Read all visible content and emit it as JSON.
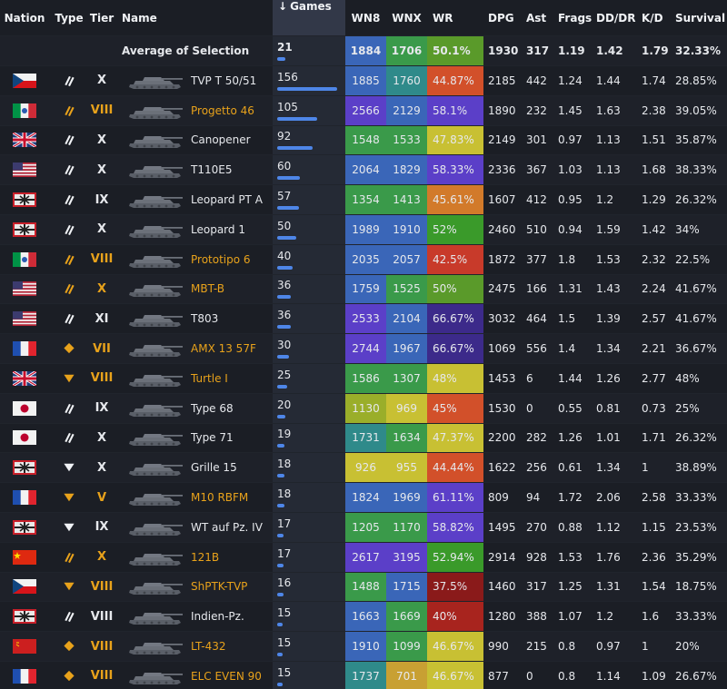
{
  "headers": {
    "nation": "Nation",
    "type": "Type",
    "tier": "Tier",
    "name": "Name",
    "games": "Games",
    "games_sort_icon": "↓",
    "wn8": "WN8",
    "wnx": "WNX",
    "wr": "WR",
    "dpg": "DPG",
    "ast": "Ast",
    "frags": "Frags",
    "dddr": "DD/DR",
    "kd": "K/D",
    "survival": "Survival"
  },
  "average": {
    "label": "Average of Selection",
    "games": "21",
    "games_fraction": 0.13,
    "wn8": "1884",
    "wn8_color": "#3a66b8",
    "wnx": "1706",
    "wnx_color": "#3a9a4a",
    "wr": "50.1%",
    "wr_color": "#5a9a2a",
    "dpg": "1930",
    "ast": "317",
    "frags": "1.19",
    "dddr": "1.42",
    "kd": "1.79",
    "survival": "32.33%"
  },
  "rows": [
    {
      "nation": "czech-flag",
      "type": "td-icon",
      "tier": "X",
      "gold": false,
      "name": "TVP T 50/51",
      "games": "156",
      "games_fraction": 1.0,
      "wn8": "1885",
      "wn8_color": "#3a66b8",
      "wnx": "1760",
      "wnx_color": "#2f8a8a",
      "wr": "44.87%",
      "wr_color": "#d2502a",
      "dpg": "2185",
      "ast": "442",
      "frags": "1.24",
      "dddr": "1.44",
      "kd": "1.74",
      "survival": "28.85%"
    },
    {
      "nation": "italy-flag",
      "type": "td-icon",
      "tier": "VIII",
      "gold": true,
      "name": "Progetto 46",
      "games": "105",
      "games_fraction": 0.67,
      "wn8": "2566",
      "wn8_color": "#5b3fc8",
      "wnx": "2129",
      "wnx_color": "#3a66b8",
      "wr": "58.1%",
      "wr_color": "#5b3fc8",
      "dpg": "1890",
      "ast": "232",
      "frags": "1.45",
      "dddr": "1.63",
      "kd": "2.38",
      "survival": "39.05%"
    },
    {
      "nation": "uk-flag",
      "type": "td-icon",
      "tier": "X",
      "gold": false,
      "name": "Canopener",
      "games": "92",
      "games_fraction": 0.59,
      "wn8": "1548",
      "wn8_color": "#3a9a4a",
      "wnx": "1533",
      "wnx_color": "#3a9a4a",
      "wr": "47.83%",
      "wr_color": "#c8c033",
      "dpg": "2149",
      "ast": "301",
      "frags": "0.97",
      "dddr": "1.13",
      "kd": "1.51",
      "survival": "35.87%"
    },
    {
      "nation": "usa-flag",
      "type": "td-icon",
      "tier": "X",
      "gold": false,
      "name": "T110E5",
      "games": "60",
      "games_fraction": 0.38,
      "wn8": "2064",
      "wn8_color": "#3a66b8",
      "wnx": "1829",
      "wnx_color": "#3a66b8",
      "wr": "58.33%",
      "wr_color": "#5b3fc8",
      "dpg": "2336",
      "ast": "367",
      "frags": "1.03",
      "dddr": "1.13",
      "kd": "1.68",
      "survival": "38.33%"
    },
    {
      "nation": "germany-flag",
      "type": "td-icon",
      "tier": "IX",
      "gold": false,
      "name": "Leopard PT A",
      "games": "57",
      "games_fraction": 0.36,
      "wn8": "1354",
      "wn8_color": "#3a9a4a",
      "wnx": "1413",
      "wnx_color": "#3a9a4a",
      "wr": "45.61%",
      "wr_color": "#d27a2a",
      "dpg": "1607",
      "ast": "412",
      "frags": "0.95",
      "dddr": "1.2",
      "kd": "1.29",
      "survival": "26.32%"
    },
    {
      "nation": "germany-flag",
      "type": "td-icon",
      "tier": "X",
      "gold": false,
      "name": "Leopard 1",
      "games": "50",
      "games_fraction": 0.32,
      "wn8": "1989",
      "wn8_color": "#3a66b8",
      "wnx": "1910",
      "wnx_color": "#3a66b8",
      "wr": "52%",
      "wr_color": "#3a9a2a",
      "dpg": "2460",
      "ast": "510",
      "frags": "0.94",
      "dddr": "1.59",
      "kd": "1.42",
      "survival": "34%"
    },
    {
      "nation": "italy-flag",
      "type": "td-icon",
      "tier": "VIII",
      "gold": true,
      "name": "Prototipo 6",
      "games": "40",
      "games_fraction": 0.26,
      "wn8": "2035",
      "wn8_color": "#3a66b8",
      "wnx": "2057",
      "wnx_color": "#3a66b8",
      "wr": "42.5%",
      "wr_color": "#c83a2a",
      "dpg": "1872",
      "ast": "377",
      "frags": "1.8",
      "dddr": "1.53",
      "kd": "2.32",
      "survival": "22.5%"
    },
    {
      "nation": "usa-flag",
      "type": "td-icon",
      "tier": "X",
      "gold": true,
      "name": "MBT-B",
      "games": "36",
      "games_fraction": 0.23,
      "wn8": "1759",
      "wn8_color": "#3a66b8",
      "wnx": "1525",
      "wnx_color": "#3a9a4a",
      "wr": "50%",
      "wr_color": "#5a9a2a",
      "dpg": "2475",
      "ast": "166",
      "frags": "1.31",
      "dddr": "1.43",
      "kd": "2.24",
      "survival": "41.67%"
    },
    {
      "nation": "usa-flag",
      "type": "td-icon",
      "tier": "XI",
      "gold": false,
      "name": "T803",
      "games": "36",
      "games_fraction": 0.23,
      "wn8": "2533",
      "wn8_color": "#5b3fc8",
      "wnx": "2104",
      "wnx_color": "#3a66b8",
      "wr": "66.67%",
      "wr_color": "#3c2a8a",
      "dpg": "3032",
      "ast": "464",
      "frags": "1.5",
      "dddr": "1.39",
      "kd": "2.57",
      "survival": "41.67%"
    },
    {
      "nation": "france-flag",
      "type": "light-icon",
      "tier": "VII",
      "gold": true,
      "name": "AMX 13 57F",
      "games": "30",
      "games_fraction": 0.19,
      "wn8": "2744",
      "wn8_color": "#5b3fc8",
      "wnx": "1967",
      "wnx_color": "#3a66b8",
      "wr": "66.67%",
      "wr_color": "#3c2a8a",
      "dpg": "1069",
      "ast": "556",
      "frags": "1.4",
      "dddr": "1.34",
      "kd": "2.21",
      "survival": "36.67%"
    },
    {
      "nation": "uk-flag",
      "type": "heavy-icon",
      "tier": "VIII",
      "gold": true,
      "name": "Turtle I",
      "games": "25",
      "games_fraction": 0.16,
      "wn8": "1586",
      "wn8_color": "#3a9a4a",
      "wnx": "1307",
      "wnx_color": "#3a9a4a",
      "wr": "48%",
      "wr_color": "#c8c033",
      "dpg": "1453",
      "ast": "6",
      "frags": "1.44",
      "dddr": "1.26",
      "kd": "2.77",
      "survival": "48%"
    },
    {
      "nation": "japan-flag",
      "type": "td-icon",
      "tier": "IX",
      "gold": false,
      "name": "Type 68",
      "games": "20",
      "games_fraction": 0.13,
      "wn8": "1130",
      "wn8_color": "#9aae2a",
      "wnx": "969",
      "wnx_color": "#c8c033",
      "wr": "45%",
      "wr_color": "#d2502a",
      "dpg": "1530",
      "ast": "0",
      "frags": "0.55",
      "dddr": "0.81",
      "kd": "0.73",
      "survival": "25%"
    },
    {
      "nation": "japan-flag",
      "type": "td-icon",
      "tier": "X",
      "gold": false,
      "name": "Type 71",
      "games": "19",
      "games_fraction": 0.12,
      "wn8": "1731",
      "wn8_color": "#2f8a8a",
      "wnx": "1634",
      "wnx_color": "#3a9a4a",
      "wr": "47.37%",
      "wr_color": "#c8c033",
      "dpg": "2200",
      "ast": "282",
      "frags": "1.26",
      "dddr": "1.01",
      "kd": "1.71",
      "survival": "26.32%"
    },
    {
      "nation": "germany-flag",
      "type": "heavy-icon",
      "tier": "X",
      "gold": false,
      "name": "Grille 15",
      "games": "18",
      "games_fraction": 0.115,
      "wn8": "926",
      "wn8_color": "#c8c033",
      "wnx": "955",
      "wnx_color": "#c8c033",
      "wr": "44.44%",
      "wr_color": "#d2502a",
      "dpg": "1622",
      "ast": "256",
      "frags": "0.61",
      "dddr": "1.34",
      "kd": "1",
      "survival": "38.89%"
    },
    {
      "nation": "france-flag",
      "type": "heavy-icon",
      "tier": "V",
      "gold": true,
      "name": "M10 RBFM",
      "games": "18",
      "games_fraction": 0.115,
      "wn8": "1824",
      "wn8_color": "#3a66b8",
      "wnx": "1969",
      "wnx_color": "#3a66b8",
      "wr": "61.11%",
      "wr_color": "#5b3fc8",
      "dpg": "809",
      "ast": "94",
      "frags": "1.72",
      "dddr": "2.06",
      "kd": "2.58",
      "survival": "33.33%"
    },
    {
      "nation": "germany-flag",
      "type": "heavy-icon",
      "tier": "IX",
      "gold": false,
      "name": "WT auf Pz. IV",
      "games": "17",
      "games_fraction": 0.11,
      "wn8": "1205",
      "wn8_color": "#3a9a4a",
      "wnx": "1170",
      "wnx_color": "#3a9a4a",
      "wr": "58.82%",
      "wr_color": "#5b3fc8",
      "dpg": "1495",
      "ast": "270",
      "frags": "0.88",
      "dddr": "1.12",
      "kd": "1.15",
      "survival": "23.53%"
    },
    {
      "nation": "china-flag",
      "type": "td-icon",
      "tier": "X",
      "gold": true,
      "name": "121B",
      "games": "17",
      "games_fraction": 0.11,
      "wn8": "2617",
      "wn8_color": "#5b3fc8",
      "wnx": "3195",
      "wnx_color": "#5b3fc8",
      "wr": "52.94%",
      "wr_color": "#3a9a2a",
      "dpg": "2914",
      "ast": "928",
      "frags": "1.53",
      "dddr": "1.76",
      "kd": "2.36",
      "survival": "35.29%"
    },
    {
      "nation": "czech-flag",
      "type": "heavy-icon",
      "tier": "VIII",
      "gold": true,
      "name": "ShPTK-TVP",
      "games": "16",
      "games_fraction": 0.1,
      "wn8": "1488",
      "wn8_color": "#3a9a4a",
      "wnx": "1715",
      "wnx_color": "#3a66b8",
      "wr": "37.5%",
      "wr_color": "#8a1a1a",
      "dpg": "1460",
      "ast": "317",
      "frags": "1.25",
      "dddr": "1.31",
      "kd": "1.54",
      "survival": "18.75%"
    },
    {
      "nation": "germany-flag",
      "type": "td-icon",
      "tier": "VIII",
      "gold": false,
      "name": "Indien-Pz.",
      "games": "15",
      "games_fraction": 0.096,
      "wn8": "1663",
      "wn8_color": "#3a66b8",
      "wnx": "1669",
      "wnx_color": "#3a9a4a",
      "wr": "40%",
      "wr_color": "#a8241e",
      "dpg": "1280",
      "ast": "388",
      "frags": "1.07",
      "dddr": "1.2",
      "kd": "1.6",
      "survival": "33.33%"
    },
    {
      "nation": "ussr-flag",
      "type": "light-icon",
      "tier": "VIII",
      "gold": true,
      "name": "LT-432",
      "games": "15",
      "games_fraction": 0.096,
      "wn8": "1910",
      "wn8_color": "#3a66b8",
      "wnx": "1099",
      "wnx_color": "#3a9a4a",
      "wr": "46.67%",
      "wr_color": "#c8c033",
      "dpg": "990",
      "ast": "215",
      "frags": "0.8",
      "dddr": "0.97",
      "kd": "1",
      "survival": "20%"
    },
    {
      "nation": "france-flag",
      "type": "light-icon",
      "tier": "VIII",
      "gold": true,
      "name": "ELC EVEN 90",
      "games": "15",
      "games_fraction": 0.096,
      "wn8": "1737",
      "wn8_color": "#2f8a8a",
      "wnx": "701",
      "wnx_color": "#c8a033",
      "wr": "46.67%",
      "wr_color": "#c8c033",
      "dpg": "877",
      "ast": "0",
      "frags": "0.8",
      "dddr": "1.14",
      "kd": "1.09",
      "survival": "26.67%"
    }
  ],
  "colors": {
    "gold": "#e8a21b",
    "games_bar": "#4e86e8",
    "background": "#1a1d24"
  }
}
